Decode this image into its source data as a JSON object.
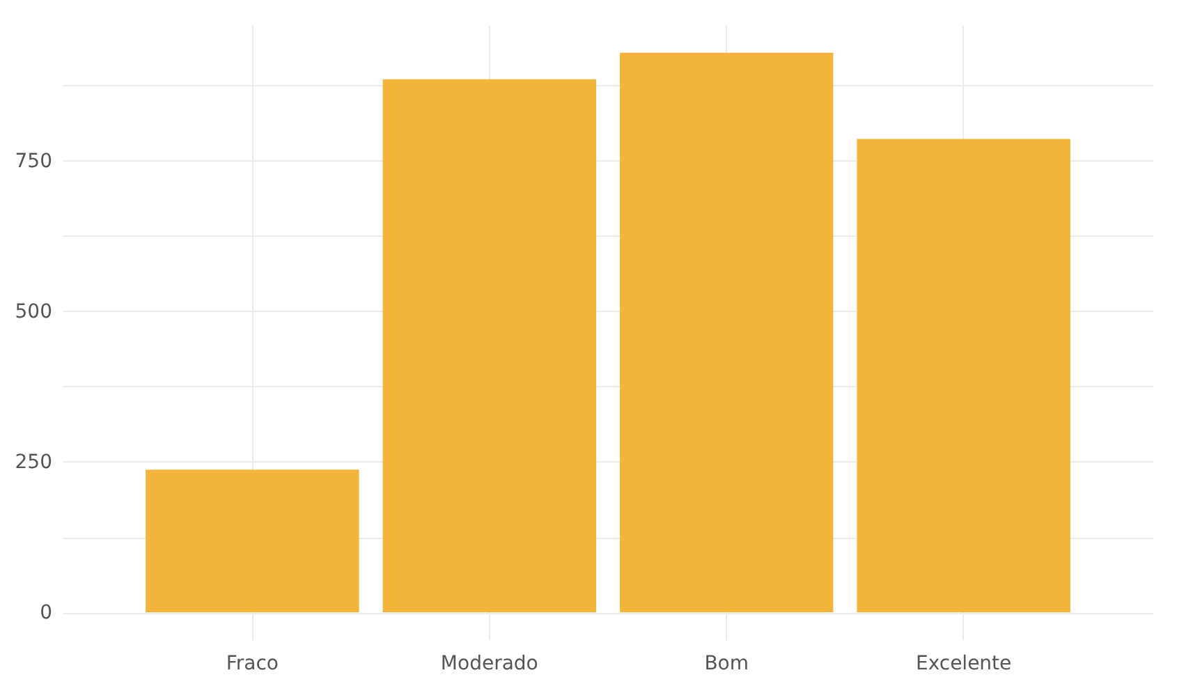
{
  "chart_data": {
    "type": "bar",
    "categories": [
      "Fraco",
      "Moderado",
      "Bom",
      "Excelente"
    ],
    "values": [
      237,
      885,
      929,
      786
    ],
    "color": "#f3b53b",
    "ylim": [
      -45,
      975
    ],
    "yticks": [
      {
        "value": 0,
        "label": "0"
      },
      {
        "value": 125,
        "label": null
      },
      {
        "value": 250,
        "label": "250"
      },
      {
        "value": 375,
        "label": null
      },
      {
        "value": 500,
        "label": "500"
      },
      {
        "value": 625,
        "label": null
      },
      {
        "value": 750,
        "label": "750"
      },
      {
        "value": 875,
        "label": null
      }
    ],
    "grid": true
  }
}
